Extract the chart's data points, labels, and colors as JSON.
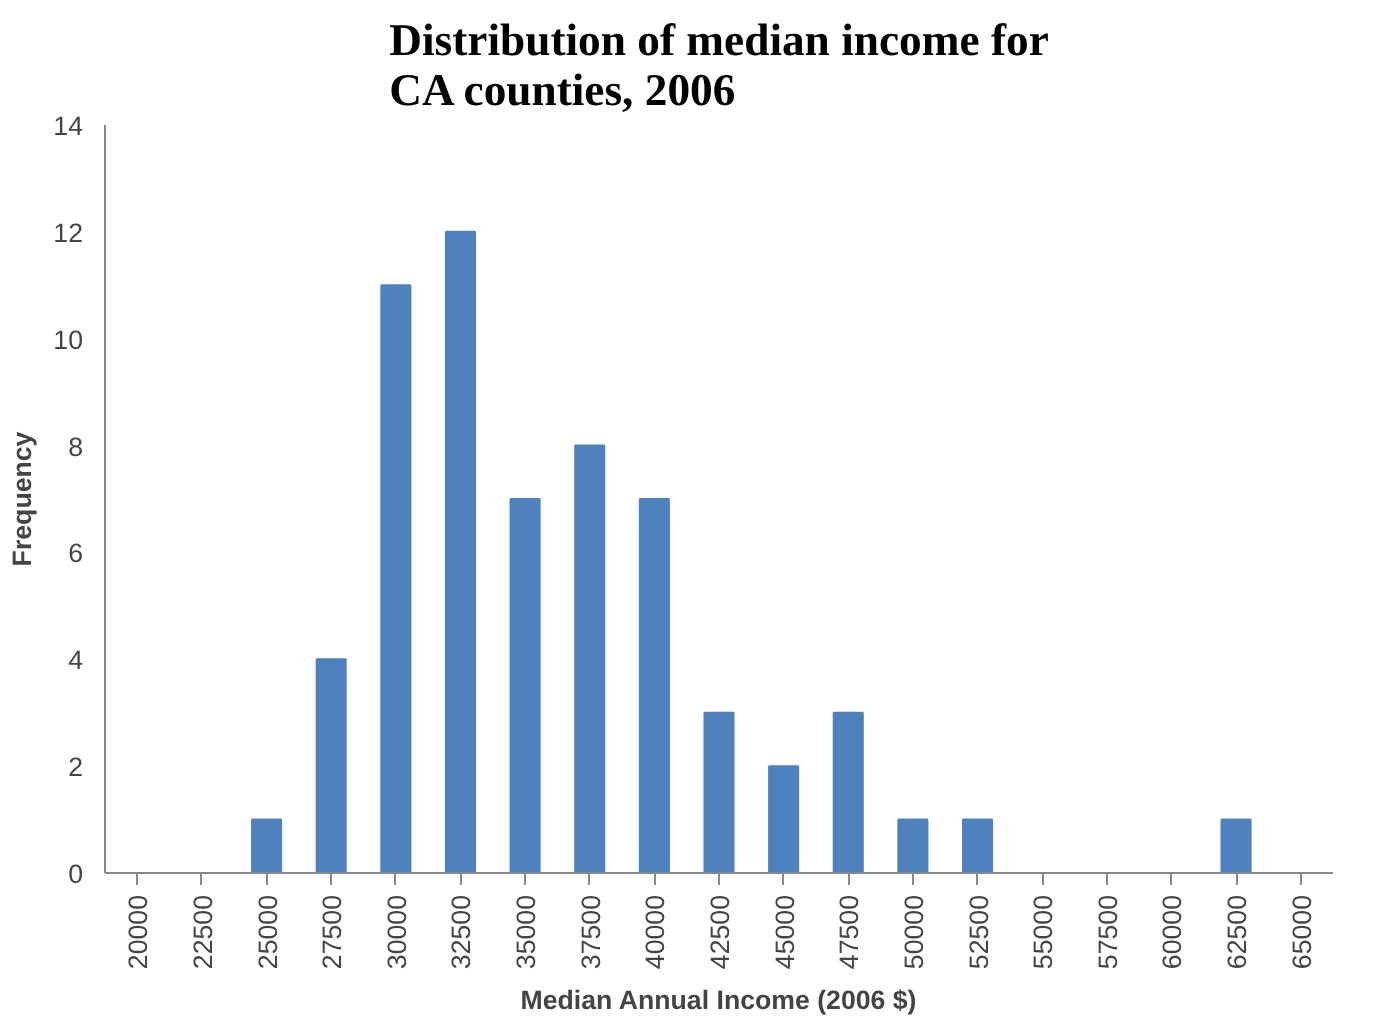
{
  "chart_data": {
    "type": "bar",
    "title": "Distribution of median income for CA counties, 2006",
    "xlabel": "Median Annual Income (2006 $)",
    "ylabel": "Frequency",
    "categories": [
      "20000",
      "22500",
      "25000",
      "27500",
      "30000",
      "32500",
      "35000",
      "37500",
      "40000",
      "42500",
      "45000",
      "47500",
      "50000",
      "52500",
      "55000",
      "57500",
      "60000",
      "62500",
      "65000"
    ],
    "values": [
      0,
      0,
      1,
      4,
      11,
      12,
      7,
      8,
      7,
      3,
      2,
      3,
      1,
      1,
      0,
      0,
      0,
      1,
      0
    ],
    "color": "#4f81bd",
    "ylim": [
      0,
      14
    ],
    "yticks": [
      0,
      2,
      4,
      6,
      8,
      10,
      12,
      14
    ],
    "grid": false
  }
}
